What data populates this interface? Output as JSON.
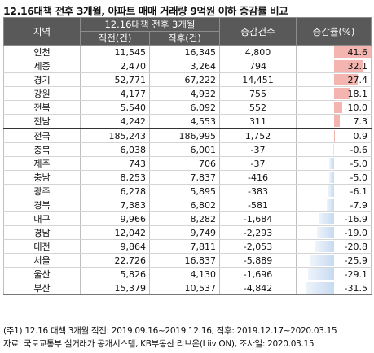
{
  "title": "12.16대책 전후 3개월, 아파트 매매 거래량 9억원 이하 증감률 비교",
  "header": {
    "region": "지역",
    "group": "12.16대책 전후 3개월",
    "before": "직전(건)",
    "after": "직후(건)",
    "change": "증감건수",
    "rate": "증감률(%)"
  },
  "rows": [
    {
      "region": "인천",
      "before": "11,545",
      "after": "16,345",
      "change": "4,800",
      "rate": "41.6",
      "rate_value": 41.6
    },
    {
      "region": "세종",
      "before": "2,470",
      "after": "3,264",
      "change": "794",
      "rate": "32.1",
      "rate_value": 32.1
    },
    {
      "region": "경기",
      "before": "52,771",
      "after": "67,222",
      "change": "14,451",
      "rate": "27.4",
      "rate_value": 27.4
    },
    {
      "region": "강원",
      "before": "4,177",
      "after": "4,932",
      "change": "755",
      "rate": "18.1",
      "rate_value": 18.1
    },
    {
      "region": "전북",
      "before": "5,540",
      "after": "6,092",
      "change": "552",
      "rate": "10.0",
      "rate_value": 10.0
    },
    {
      "region": "전남",
      "before": "4,242",
      "after": "4,553",
      "change": "311",
      "rate": "7.3",
      "rate_value": 7.3
    },
    {
      "region": "전국",
      "before": "185,243",
      "after": "186,995",
      "change": "1,752",
      "rate": "0.9",
      "rate_value": 0.9
    },
    {
      "region": "충북",
      "before": "6,038",
      "after": "6,001",
      "change": "-37",
      "rate": "-0.6",
      "rate_value": -0.6
    },
    {
      "region": "제주",
      "before": "743",
      "after": "706",
      "change": "-37",
      "rate": "-5.0",
      "rate_value": -5.0
    },
    {
      "region": "충남",
      "before": "8,253",
      "after": "7,837",
      "change": "-416",
      "rate": "-5.0",
      "rate_value": -5.0
    },
    {
      "region": "광주",
      "before": "6,278",
      "after": "5,895",
      "change": "-383",
      "rate": "-6.1",
      "rate_value": -6.1
    },
    {
      "region": "경북",
      "before": "7,383",
      "after": "6,802",
      "change": "-581",
      "rate": "-7.9",
      "rate_value": -7.9
    },
    {
      "region": "대구",
      "before": "9,966",
      "after": "8,282",
      "change": "-1,684",
      "rate": "-16.9",
      "rate_value": -16.9
    },
    {
      "region": "경남",
      "before": "12,042",
      "after": "9,749",
      "change": "-2,293",
      "rate": "-19.0",
      "rate_value": -19.0
    },
    {
      "region": "대전",
      "before": "9,864",
      "after": "7,811",
      "change": "-2,053",
      "rate": "-20.8",
      "rate_value": -20.8
    },
    {
      "region": "서울",
      "before": "22,726",
      "after": "16,837",
      "change": "-5,889",
      "rate": "-25.9",
      "rate_value": -25.9
    },
    {
      "region": "울산",
      "before": "5,826",
      "after": "4,130",
      "change": "-1,696",
      "rate": "-29.1",
      "rate_value": -29.1
    },
    {
      "region": "부산",
      "before": "15,379",
      "after": "10,537",
      "change": "-4,842",
      "rate": "-31.5",
      "rate_value": -31.5
    }
  ],
  "notes": {
    "note1": "(주1) 12.16 대책 3개월 직전: 2019.09.16~2019.12.16, 직후: 2019.12.17~2020.03.15",
    "note2": "자료: 국토교통부 실거래가 공개시스템, KB부동산 리브온(Liiv ON), 조사일: 2020.03.15"
  },
  "colors": {
    "header_bg": "#595959",
    "positive_bar": "#f4b5b0",
    "negative_bar": "#c7daf0"
  }
}
